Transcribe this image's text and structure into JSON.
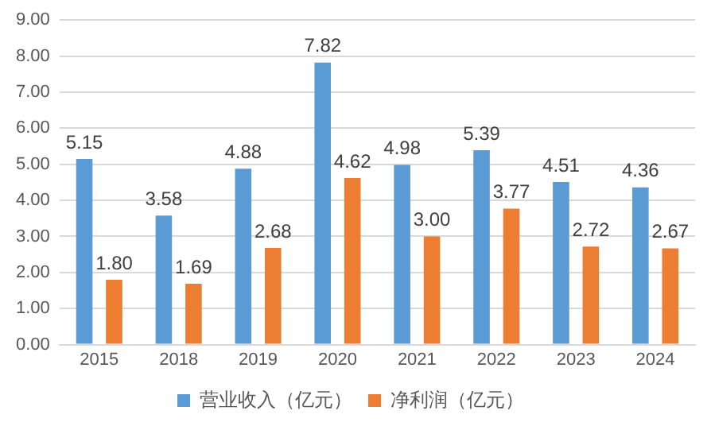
{
  "chart_data": {
    "type": "bar",
    "categories": [
      "2015",
      "2018",
      "2019",
      "2020",
      "2021",
      "2022",
      "2023",
      "2024"
    ],
    "series": [
      {
        "name": "营业收入（亿元）",
        "color": "#5b9bd5",
        "values": [
          5.15,
          3.58,
          4.88,
          7.82,
          4.98,
          5.39,
          4.51,
          4.36
        ],
        "value_labels": [
          "5.15",
          "3.58",
          "4.88",
          "7.82",
          "4.98",
          "5.39",
          "4.51",
          "4.36"
        ]
      },
      {
        "name": "净利润（亿元）",
        "color": "#ed7d31",
        "values": [
          1.8,
          1.69,
          2.68,
          4.62,
          3.0,
          3.77,
          2.72,
          2.67
        ],
        "value_labels": [
          "1.80",
          "1.69",
          "2.68",
          "4.62",
          "3.00",
          "3.77",
          "2.72",
          "2.67"
        ]
      }
    ],
    "ylim": [
      0,
      9
    ],
    "yticks": [
      {
        "value": 0,
        "label": "0.00"
      },
      {
        "value": 1,
        "label": "1.00"
      },
      {
        "value": 2,
        "label": "2.00"
      },
      {
        "value": 3,
        "label": "3.00"
      },
      {
        "value": 4,
        "label": "4.00"
      },
      {
        "value": 5,
        "label": "5.00"
      },
      {
        "value": 6,
        "label": "6.00"
      },
      {
        "value": 7,
        "label": "7.00"
      },
      {
        "value": 8,
        "label": "8.00"
      },
      {
        "value": 9,
        "label": "9.00"
      }
    ],
    "grid": "y",
    "legend": "bottom"
  }
}
